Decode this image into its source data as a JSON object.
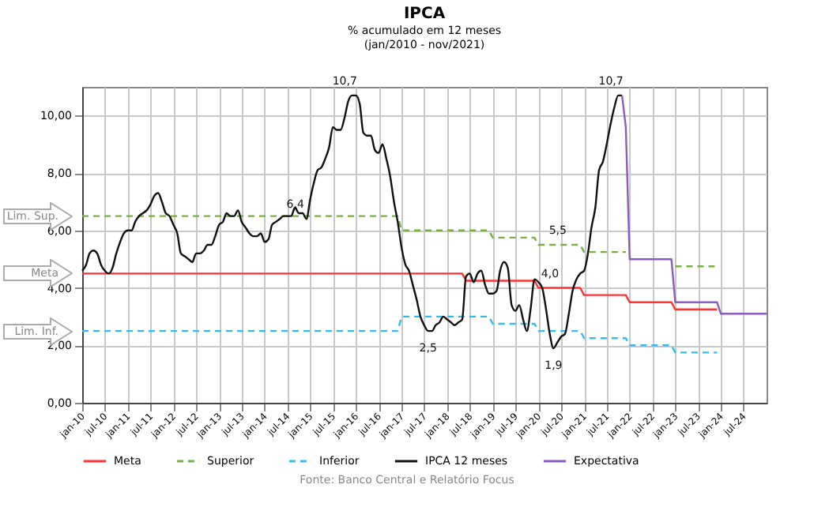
{
  "chart_data": {
    "type": "line",
    "title": "IPCA",
    "subtitle": "% acumulado em 12 meses\n(jan/2010 - nov/2021)",
    "xlim": [
      "2010-01",
      "2025-01"
    ],
    "ylim": [
      0,
      11
    ],
    "xticks": [
      {
        "value": "2010-01",
        "label": "jan-10"
      },
      {
        "value": "2010-07",
        "label": "jul-10"
      },
      {
        "value": "2011-01",
        "label": "jan-11"
      },
      {
        "value": "2011-07",
        "label": "jul-11"
      },
      {
        "value": "2012-01",
        "label": "jan-12"
      },
      {
        "value": "2012-07",
        "label": "jul-12"
      },
      {
        "value": "2013-01",
        "label": "jan-13"
      },
      {
        "value": "2013-07",
        "label": "jul-13"
      },
      {
        "value": "2014-01",
        "label": "jan-14"
      },
      {
        "value": "2014-07",
        "label": "jul-14"
      },
      {
        "value": "2015-01",
        "label": "jan-15"
      },
      {
        "value": "2015-07",
        "label": "jul-15"
      },
      {
        "value": "2016-01",
        "label": "jan-16"
      },
      {
        "value": "2016-07",
        "label": "jul-16"
      },
      {
        "value": "2017-01",
        "label": "jan-17"
      },
      {
        "value": "2017-07",
        "label": "jul-17"
      },
      {
        "value": "2018-01",
        "label": "jan-18"
      },
      {
        "value": "2018-07",
        "label": "jul-18"
      },
      {
        "value": "2019-01",
        "label": "jan-19"
      },
      {
        "value": "2019-07",
        "label": "jul-19"
      },
      {
        "value": "2020-01",
        "label": "jan-20"
      },
      {
        "value": "2020-07",
        "label": "jul-20"
      },
      {
        "value": "2021-01",
        "label": "jan-21"
      },
      {
        "value": "2021-07",
        "label": "jul-21"
      },
      {
        "value": "2022-01",
        "label": "jan-22"
      },
      {
        "value": "2022-07",
        "label": "jul-22"
      },
      {
        "value": "2023-01",
        "label": "jan-23"
      },
      {
        "value": "2023-07",
        "label": "jul-23"
      },
      {
        "value": "2024-01",
        "label": "jan-24"
      },
      {
        "value": "2024-07",
        "label": "jul-24"
      }
    ],
    "yticks": [
      {
        "value": 0,
        "label": "0,00"
      },
      {
        "value": 2,
        "label": "2,00"
      },
      {
        "value": 4,
        "label": "4,00"
      },
      {
        "value": 6,
        "label": "6,00"
      },
      {
        "value": 8,
        "label": "8,00"
      },
      {
        "value": 10,
        "label": "10,00"
      }
    ],
    "grid": true,
    "legend": "bottom",
    "series": [
      {
        "name": "Meta",
        "color": "#ff3333",
        "line_style": "solid",
        "x": [
          "2010-01",
          "2018-05",
          "2018-06",
          "2019-12",
          "2020-01",
          "2020-12",
          "2021-01",
          "2021-12",
          "2022-01",
          "2022-12",
          "2023-01",
          "2023-12"
        ],
        "values": [
          4.5,
          4.5,
          4.25,
          4.25,
          4.0,
          4.0,
          3.75,
          3.75,
          3.5,
          3.5,
          3.25,
          3.25
        ]
      },
      {
        "name": "Superior",
        "color": "#77b043",
        "line_style": "dashed",
        "x": [
          "2010-01",
          "2016-12",
          "2017-01",
          "2018-12",
          "2019-01",
          "2019-12",
          "2020-01",
          "2020-12",
          "2021-01",
          "2021-12",
          "2022-01",
          "2022-12",
          "2023-01",
          "2023-12"
        ],
        "values": [
          6.5,
          6.5,
          6.0,
          6.0,
          5.75,
          5.75,
          5.5,
          5.5,
          5.25,
          5.25,
          null,
          null,
          4.75,
          4.75
        ]
      },
      {
        "name": "Inferior",
        "color": "#33bbee",
        "line_style": "dashed",
        "x": [
          "2010-01",
          "2016-12",
          "2017-01",
          "2018-12",
          "2019-01",
          "2019-12",
          "2020-01",
          "2020-12",
          "2021-01",
          "2021-12",
          "2022-01",
          "2022-12",
          "2023-01",
          "2023-12"
        ],
        "values": [
          2.5,
          2.5,
          3.0,
          3.0,
          2.75,
          2.75,
          2.5,
          2.5,
          2.25,
          2.25,
          2.0,
          2.0,
          1.75,
          1.75
        ]
      },
      {
        "name": "IPCA 12 meses",
        "color": "#111111",
        "line_style": "solid",
        "x": [
          "2010-01",
          "2010-02",
          "2010-03",
          "2010-04",
          "2010-05",
          "2010-06",
          "2010-07",
          "2010-08",
          "2010-09",
          "2010-10",
          "2010-11",
          "2010-12",
          "2011-01",
          "2011-02",
          "2011-03",
          "2011-04",
          "2011-05",
          "2011-06",
          "2011-07",
          "2011-08",
          "2011-09",
          "2011-10",
          "2011-11",
          "2011-12",
          "2012-01",
          "2012-02",
          "2012-03",
          "2012-04",
          "2012-05",
          "2012-06",
          "2012-07",
          "2012-08",
          "2012-09",
          "2012-10",
          "2012-11",
          "2012-12",
          "2013-01",
          "2013-02",
          "2013-03",
          "2013-04",
          "2013-05",
          "2013-06",
          "2013-07",
          "2013-08",
          "2013-09",
          "2013-10",
          "2013-11",
          "2013-12",
          "2014-01",
          "2014-02",
          "2014-03",
          "2014-04",
          "2014-05",
          "2014-06",
          "2014-07",
          "2014-08",
          "2014-09",
          "2014-10",
          "2014-11",
          "2014-12",
          "2015-01",
          "2015-02",
          "2015-03",
          "2015-04",
          "2015-05",
          "2015-06",
          "2015-07",
          "2015-08",
          "2015-09",
          "2015-10",
          "2015-11",
          "2015-12",
          "2016-01",
          "2016-02",
          "2016-03",
          "2016-04",
          "2016-05",
          "2016-06",
          "2016-07",
          "2016-08",
          "2016-09",
          "2016-10",
          "2016-11",
          "2016-12",
          "2017-01",
          "2017-02",
          "2017-03",
          "2017-04",
          "2017-05",
          "2017-06",
          "2017-07",
          "2017-08",
          "2017-09",
          "2017-10",
          "2017-11",
          "2017-12",
          "2018-01",
          "2018-02",
          "2018-03",
          "2018-04",
          "2018-05",
          "2018-06",
          "2018-07",
          "2018-08",
          "2018-09",
          "2018-10",
          "2018-11",
          "2018-12",
          "2019-01",
          "2019-02",
          "2019-03",
          "2019-04",
          "2019-05",
          "2019-06",
          "2019-07",
          "2019-08",
          "2019-09",
          "2019-10",
          "2019-11",
          "2019-12",
          "2020-01",
          "2020-02",
          "2020-03",
          "2020-04",
          "2020-05",
          "2020-06",
          "2020-07",
          "2020-08",
          "2020-09",
          "2020-10",
          "2020-11",
          "2020-12",
          "2021-01",
          "2021-02",
          "2021-03",
          "2021-04",
          "2021-05",
          "2021-06",
          "2021-07",
          "2021-08",
          "2021-09",
          "2021-10",
          "2021-11"
        ],
        "values": [
          4.6,
          4.8,
          5.2,
          5.3,
          5.2,
          4.8,
          4.6,
          4.5,
          4.7,
          5.2,
          5.6,
          5.9,
          6.0,
          6.0,
          6.3,
          6.5,
          6.6,
          6.7,
          6.9,
          7.2,
          7.3,
          7.0,
          6.6,
          6.5,
          6.2,
          5.9,
          5.2,
          5.1,
          5.0,
          4.9,
          5.2,
          5.2,
          5.3,
          5.5,
          5.5,
          5.8,
          6.2,
          6.3,
          6.6,
          6.5,
          6.5,
          6.7,
          6.3,
          6.1,
          5.9,
          5.8,
          5.8,
          5.9,
          5.6,
          5.7,
          6.2,
          6.3,
          6.4,
          6.5,
          6.5,
          6.5,
          6.8,
          6.6,
          6.6,
          6.4,
          7.1,
          7.7,
          8.1,
          8.2,
          8.5,
          8.9,
          9.6,
          9.5,
          9.5,
          9.9,
          10.5,
          10.7,
          10.7,
          10.4,
          9.4,
          9.3,
          9.3,
          8.8,
          8.7,
          9.0,
          8.5,
          7.9,
          7.0,
          6.3,
          5.4,
          4.8,
          4.6,
          4.1,
          3.6,
          3.0,
          2.7,
          2.5,
          2.5,
          2.7,
          2.8,
          3.0,
          2.9,
          2.8,
          2.7,
          2.8,
          2.9,
          4.4,
          4.5,
          4.2,
          4.5,
          4.6,
          4.1,
          3.8,
          3.8,
          3.9,
          4.6,
          4.9,
          4.7,
          3.4,
          3.2,
          3.4,
          2.9,
          2.5,
          3.3,
          4.3,
          4.2,
          4.0,
          3.3,
          2.4,
          1.9,
          2.1,
          2.3,
          2.4,
          3.1,
          3.9,
          4.3,
          4.5,
          4.6,
          5.2,
          6.1,
          6.8,
          8.1,
          8.4,
          9.0,
          9.7,
          10.3,
          10.7,
          10.7
        ]
      },
      {
        "name": "Expectativa",
        "color": "#8e5bc0",
        "line_style": "solid",
        "x": [
          "2021-11",
          "2021-12",
          "2022-01",
          "2022-12",
          "2023-01",
          "2023-12",
          "2024-01",
          "2025-01"
        ],
        "values": [
          10.7,
          9.6,
          5.0,
          5.0,
          3.5,
          3.5,
          3.1,
          3.1
        ]
      }
    ],
    "annotations": [
      {
        "text": "10,7",
        "x": "2016-01",
        "y": 10.7
      },
      {
        "text": "6,4",
        "x": "2014-12",
        "y": 6.4
      },
      {
        "text": "2,5",
        "x": "2017-08",
        "y": 2.5
      },
      {
        "text": "5,5",
        "x": "2020-09",
        "y": 5.5
      },
      {
        "text": "4,0",
        "x": "2020-07",
        "y": 4.0
      },
      {
        "text": "1,9",
        "x": "2020-05",
        "y": 1.9
      },
      {
        "text": "10,7",
        "x": "2021-11",
        "y": 10.7
      },
      {
        "text": "Lim. Sup.",
        "x": "2010-01",
        "y": 6.5
      },
      {
        "text": "Meta",
        "x": "2010-01",
        "y": 4.5
      },
      {
        "text": "Lim. Inf.",
        "x": "2010-01",
        "y": 2.5
      },
      "Fonte: Banco Central e Relatório Focus"
    ]
  }
}
